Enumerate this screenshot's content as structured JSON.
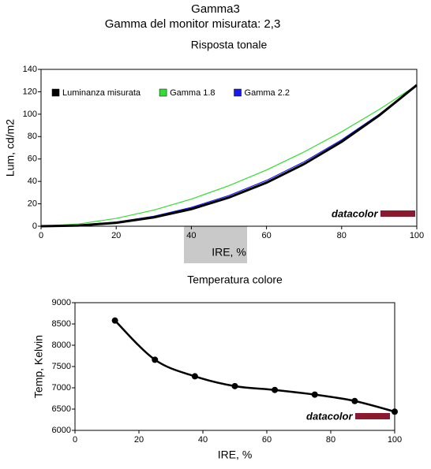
{
  "title": "Gamma3",
  "subtitle": "Gamma del monitor misurata: 2,3",
  "chart_data": [
    {
      "type": "line",
      "title": "Risposta tonale",
      "x_label": "IRE, %",
      "y_label": "Lum, cd/m2",
      "x": [
        0,
        10,
        20,
        30,
        40,
        50,
        60,
        70,
        80,
        90,
        100
      ],
      "series": [
        {
          "name": "Luminanza misurata",
          "color": "#000000",
          "values": [
            0,
            0.6,
            3.1,
            7.9,
            15.3,
            25.6,
            38.9,
            55.5,
            75.4,
            98.9,
            126
          ]
        },
        {
          "name": "Gamma 1.8",
          "color": "#33dd33",
          "values": [
            0,
            2.0,
            7.0,
            14.4,
            24.2,
            36.2,
            50.2,
            66.3,
            84.3,
            104.2,
            126
          ]
        },
        {
          "name": "Gamma 2.2",
          "color": "#1a1aee",
          "values": [
            0,
            0.8,
            3.7,
            8.9,
            16.8,
            27.4,
            40.9,
            57.5,
            77.1,
            99.9,
            126
          ]
        }
      ],
      "xlim": [
        0,
        100
      ],
      "xticks": [
        0,
        20,
        40,
        60,
        80,
        100
      ],
      "ylim": [
        0,
        140
      ],
      "yticks": [
        0,
        20,
        40,
        60,
        80,
        100,
        120,
        140
      ],
      "legend": "top-left",
      "smooth": false,
      "markers": false,
      "logo": "datacolor"
    },
    {
      "type": "line",
      "title": "Temperatura colore",
      "x_label": "IRE, %",
      "y_label": "Temp, Kelvin",
      "x": [
        12.5,
        25,
        37.5,
        50,
        62.5,
        75,
        87.5,
        100
      ],
      "series": [
        {
          "color": "#000000",
          "values": [
            8580,
            7660,
            7270,
            7040,
            6950,
            6840,
            6690,
            6440
          ]
        }
      ],
      "xlim": [
        0,
        100
      ],
      "xticks": [
        0,
        20,
        40,
        60,
        80,
        100
      ],
      "ylim": [
        6000,
        9000
      ],
      "yticks": [
        6000,
        6500,
        7000,
        7500,
        8000,
        8500,
        9000
      ],
      "smooth": true,
      "markers": true,
      "logo": "datacolor"
    }
  ]
}
